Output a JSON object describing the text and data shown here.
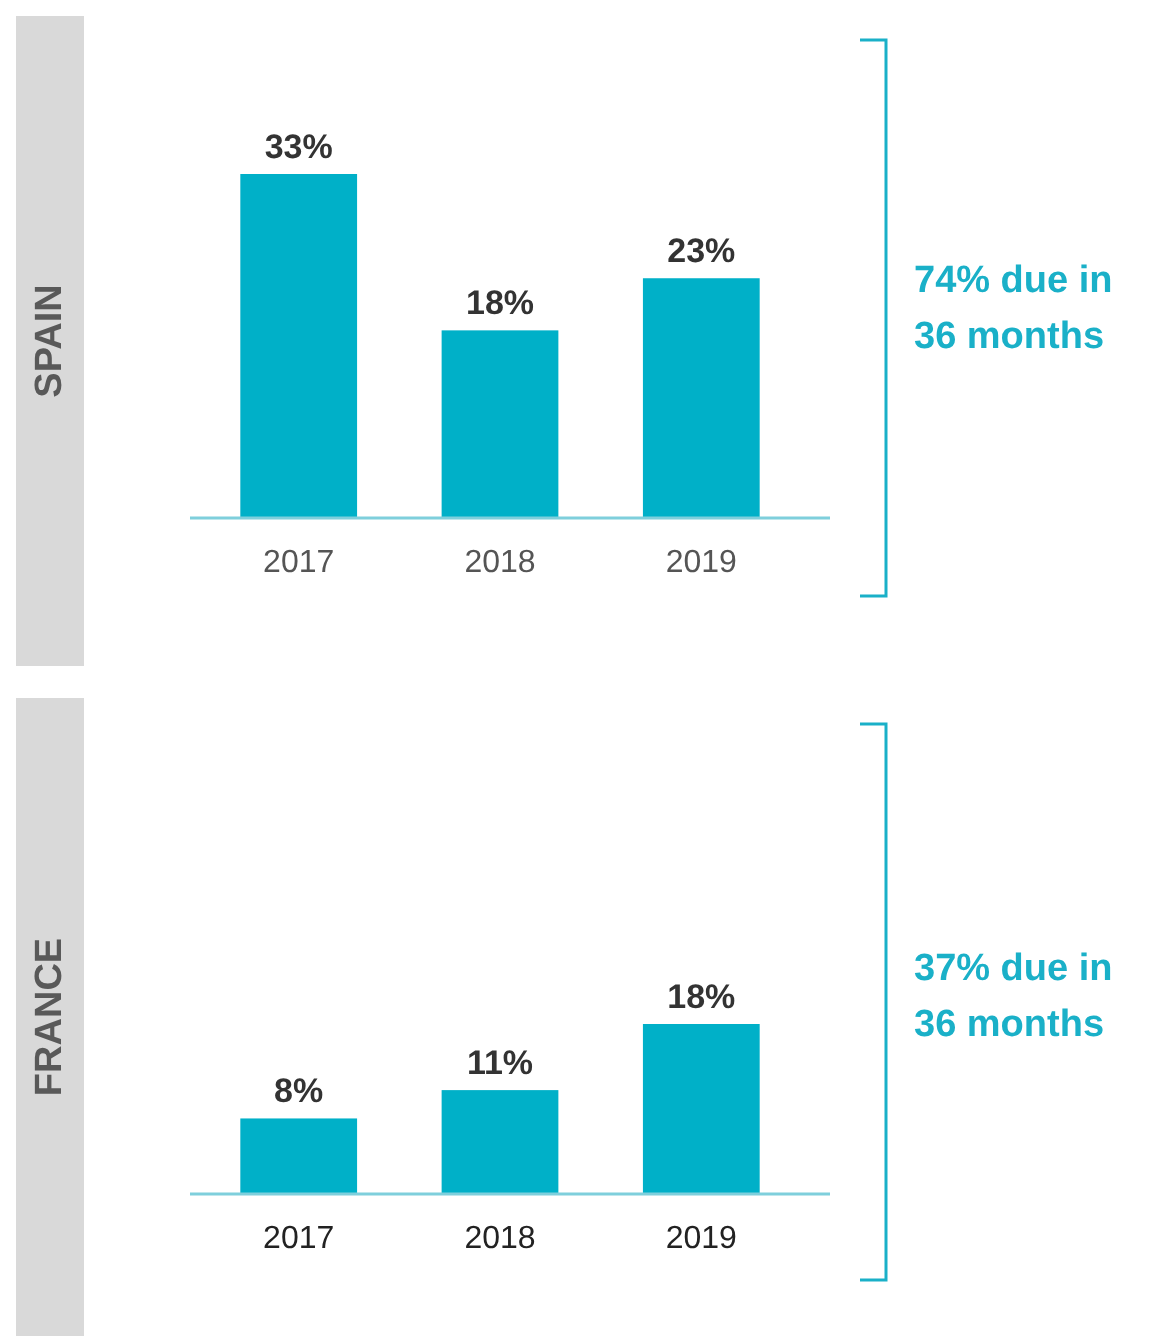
{
  "chart_data": [
    {
      "type": "bar",
      "title": "SPAIN",
      "categories": [
        "2017",
        "2018",
        "2019"
      ],
      "values": [
        33,
        18,
        23
      ],
      "value_labels": [
        "33%",
        "18%",
        "23%"
      ],
      "color": "#00b0c8",
      "annotations": [
        "74% due in\n36 months"
      ]
    },
    {
      "type": "bar",
      "title": "FRANCE",
      "categories": [
        "2017",
        "2018",
        "2019"
      ],
      "values": [
        8,
        11,
        18
      ],
      "value_labels": [
        "8%",
        "11%",
        "18%"
      ],
      "color": "#00b0c8",
      "annotations": [
        "37% due in\n36 months"
      ]
    }
  ]
}
